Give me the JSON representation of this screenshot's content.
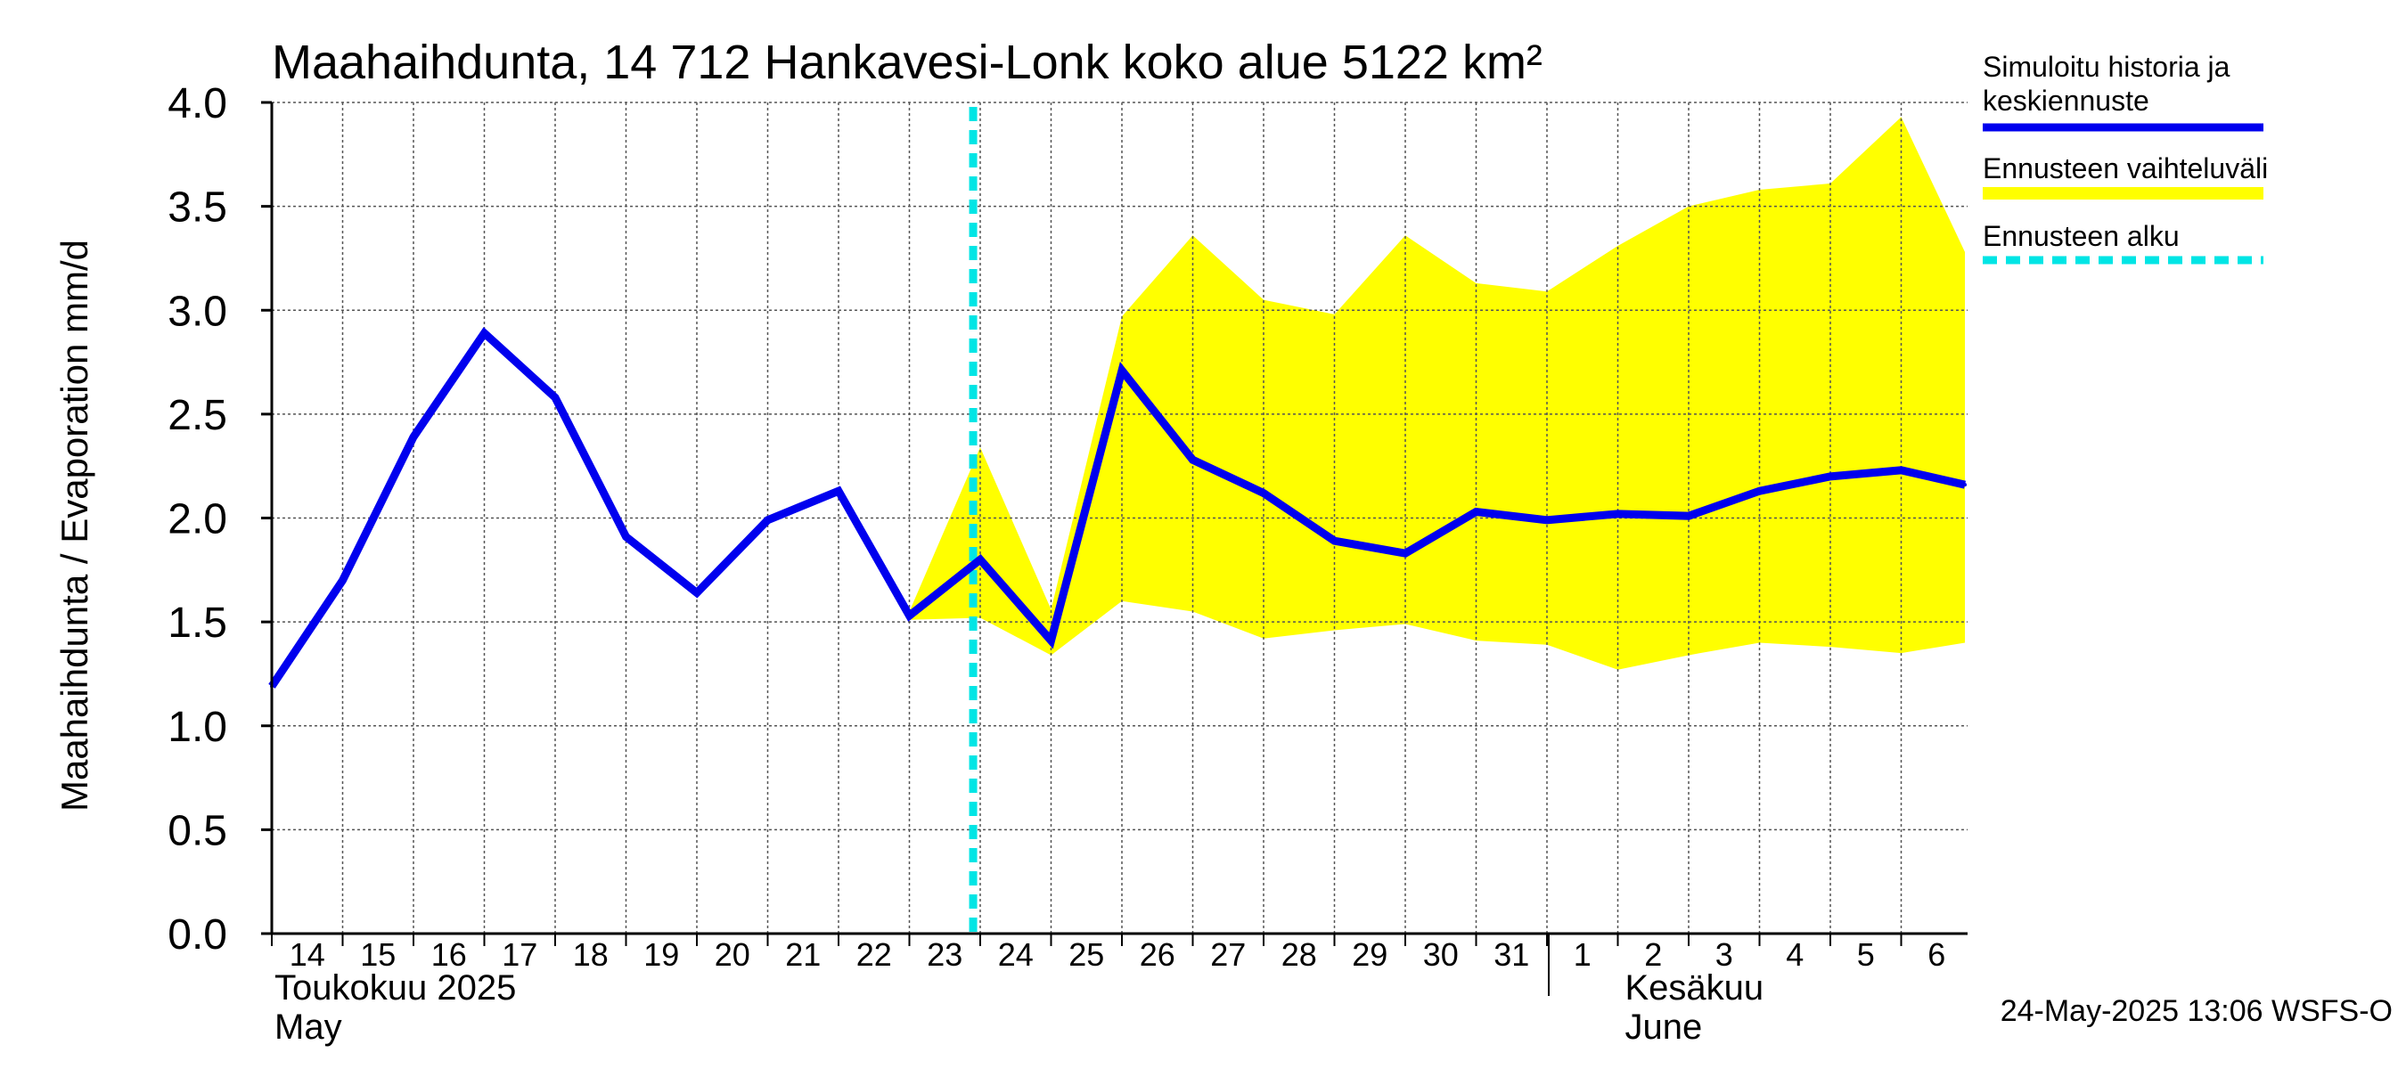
{
  "chart_data": {
    "type": "line",
    "title": "Maahaihdunta, 14 712 Hankavesi-Lonk koko alue 5122 km²",
    "ylabel": "Maahaihdunta / Evaporation   mm/d",
    "ylim": [
      0,
      4.0
    ],
    "yticks": [
      "0.0",
      "0.5",
      "1.0",
      "1.5",
      "2.0",
      "2.5",
      "3.0",
      "3.5",
      "4.0"
    ],
    "x_labels": [
      "14",
      "15",
      "16",
      "17",
      "18",
      "19",
      "20",
      "21",
      "22",
      "23",
      "24",
      "25",
      "26",
      "27",
      "28",
      "29",
      "30",
      "31",
      "1",
      "2",
      "3",
      "4",
      "5",
      "6"
    ],
    "month_labels": [
      {
        "line1": "Toukokuu  2025",
        "line2": "May",
        "start_index": 0
      },
      {
        "line1": "Kesäkuu",
        "line2": "June",
        "start_index": 18
      }
    ],
    "grid": true,
    "x_end_index": 23.9,
    "forecast_start_index": 9.9,
    "series": [
      {
        "name": "Simuloitu historia ja keskiennuste",
        "color": "#0000ee",
        "x": [
          0,
          1,
          2,
          3,
          4,
          5,
          6,
          7,
          8,
          9,
          10,
          11,
          12,
          13,
          14,
          15,
          16,
          17,
          18,
          19,
          20,
          21,
          22,
          23,
          23.9
        ],
        "values": [
          1.19,
          1.7,
          2.39,
          2.89,
          2.58,
          1.91,
          1.64,
          1.99,
          2.13,
          1.53,
          1.8,
          1.41,
          2.71,
          2.28,
          2.12,
          1.89,
          1.83,
          2.03,
          1.99,
          2.02,
          2.01,
          2.13,
          2.2,
          2.23,
          2.16
        ]
      }
    ],
    "band": {
      "name": "Ennusteen vaihteluväli",
      "color": "#ffff00",
      "x": [
        9,
        10,
        11,
        12,
        13,
        14,
        15,
        16,
        17,
        18,
        19,
        20,
        21,
        22,
        23,
        23.9
      ],
      "upper": [
        1.55,
        2.34,
        1.56,
        2.97,
        3.36,
        3.05,
        2.98,
        3.36,
        3.13,
        3.09,
        3.31,
        3.5,
        3.58,
        3.61,
        3.93,
        3.28
      ],
      "lower": [
        1.51,
        1.52,
        1.34,
        1.6,
        1.55,
        1.42,
        1.46,
        1.49,
        1.41,
        1.39,
        1.27,
        1.34,
        1.4,
        1.38,
        1.35,
        1.4
      ]
    },
    "forecast_line": {
      "name": "Ennusteen alku",
      "color": "#00e5e5"
    }
  },
  "legend": [
    {
      "label": "Simuloitu historia ja keskiennuste",
      "color": "#0000ee",
      "style": "solid"
    },
    {
      "label": "Ennusteen vaihteluväli",
      "color": "#ffff00",
      "style": "band"
    },
    {
      "label": "Ennusteen alku",
      "color": "#00e5e5",
      "style": "dashed"
    }
  ],
  "footer": {
    "timestamp": "24-May-2025 13:06 WSFS-O"
  }
}
